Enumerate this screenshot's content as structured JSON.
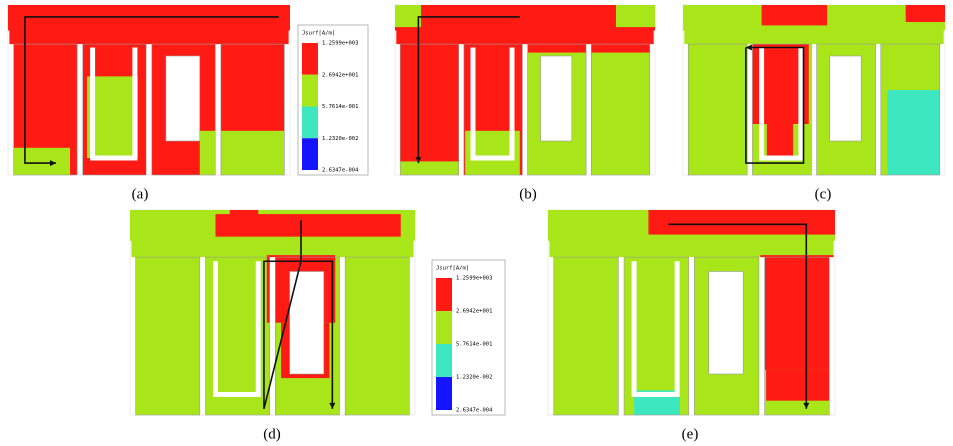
{
  "panels": [
    {
      "caption": "(a)"
    },
    {
      "caption": "(b)"
    },
    {
      "caption": "(c)"
    },
    {
      "caption": "(d)"
    },
    {
      "caption": "(e)"
    }
  ],
  "legends": [
    {
      "title": "Jsurf[A/m]",
      "labels": [
        "1.2599e+003",
        "2.6942e+001",
        "5.7614e-001",
        "1.2320e-002",
        "2.6347e-004"
      ],
      "colors": [
        "#ff1a14",
        "#a8e619",
        "#3de8c0",
        "#1414ff"
      ]
    },
    {
      "title": "Jsurf[A/m]",
      "labels": [
        "1.2599e+003",
        "2.6942e+001",
        "5.7614e-001",
        "1.2320e-002",
        "2.6347e-004"
      ],
      "colors": [
        "#ff1a14",
        "#a8e619",
        "#3de8c0",
        "#1414ff"
      ]
    }
  ]
}
